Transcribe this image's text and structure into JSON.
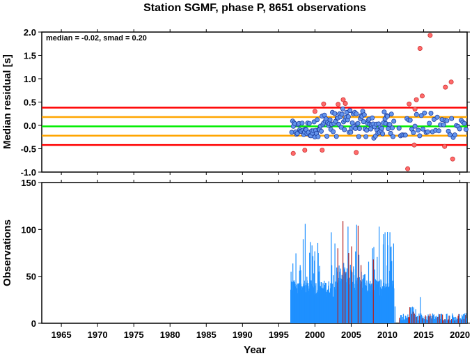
{
  "title": "Station SGMF, phase P, 8651 observations",
  "stats_text": "median = -0.02, smad = 0.20",
  "chart_data": [
    {
      "type": "scatter",
      "id": "residual",
      "ylabel": "Median residual [s]",
      "xlim": [
        1962.3,
        2021.0
      ],
      "ylim": [
        -1.0,
        2.0
      ],
      "yticks": [
        "2.0",
        "1.5",
        "1.0",
        "0.5",
        "0.0",
        "-0.5",
        "-1.0"
      ],
      "ytick_values": [
        2.0,
        1.5,
        1.0,
        0.5,
        0.0,
        -0.5,
        -1.0
      ],
      "hlines": [
        {
          "y": 0.38,
          "color": "#ff0000"
        },
        {
          "y": 0.18,
          "color": "#ffa500"
        },
        {
          "y": -0.02,
          "color": "#00ee00"
        },
        {
          "y": -0.22,
          "color": "#ffa500"
        },
        {
          "y": -0.42,
          "color": "#ff0000"
        }
      ],
      "series": [
        {
          "color": "#6495ed"
        },
        {
          "color": "#ff6a6a"
        }
      ]
    },
    {
      "type": "bar",
      "id": "observations",
      "xlabel": "Year",
      "ylabel": "Observations",
      "xlim": [
        1962.3,
        2021.0
      ],
      "ylim": [
        0,
        150
      ],
      "yticks": [
        "150",
        "100",
        "50",
        "0"
      ],
      "ytick_values": [
        150,
        100,
        50,
        0
      ],
      "xticks": [
        "1965",
        "1970",
        "1975",
        "1980",
        "1985",
        "1990",
        "1995",
        "2000",
        "2005",
        "2010",
        "2015",
        "2020"
      ],
      "xtick_values": [
        1965,
        1970,
        1975,
        1980,
        1985,
        1990,
        1995,
        2000,
        2005,
        2010,
        2015,
        2020
      ],
      "series": [
        {
          "color": "#1e90ff"
        },
        {
          "color": "#b22222"
        }
      ]
    }
  ]
}
